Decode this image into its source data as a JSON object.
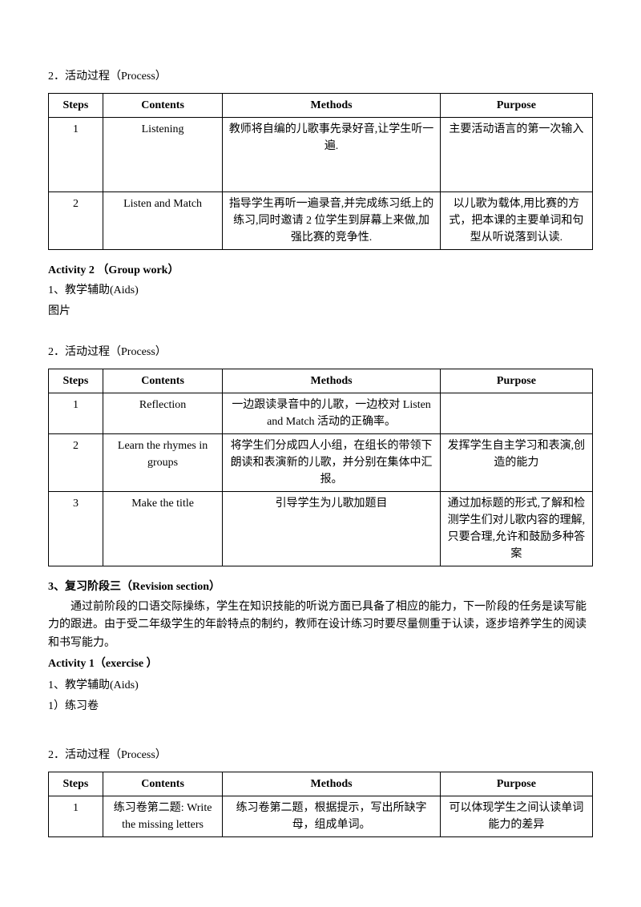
{
  "section1": {
    "heading": "2．活动过程（Process）",
    "table": {
      "headers": [
        "Steps",
        "Contents",
        "Methods",
        "Purpose"
      ],
      "rows": [
        {
          "step": "1",
          "contents": "Listening",
          "methods": "教师将自编的儿歌事先录好音,让学生听一遍.",
          "purpose": "主要活动语言的第一次输入",
          "pad": true
        },
        {
          "step": "2",
          "contents": "Listen and Match",
          "methods": "指导学生再听一遍录音,并完成练习纸上的练习,同时邀请 2 位学生到屏幕上来做,加强比赛的竞争性.",
          "purpose": "以儿歌为载体,用比赛的方式，把本课的主要单词和句型从听说落到认读."
        }
      ]
    }
  },
  "act2": {
    "title": "Activity 2 （Group work）",
    "aids_line": "1、教学辅助(Aids)",
    "aids_item": "图片",
    "process_head": "2．活动过程（Process）",
    "table": {
      "headers": [
        "Steps",
        "Contents",
        "Methods",
        "Purpose"
      ],
      "rows": [
        {
          "step": "1",
          "contents": "Reflection",
          "methods": "一边跟读录音中的儿歌，一边校对 Listen and Match 活动的正确率。",
          "purpose": ""
        },
        {
          "step": "2",
          "contents": "Learn the rhymes in groups",
          "methods": "将学生们分成四人小组，在组长的带领下朗读和表演新的儿歌，并分别在集体中汇报。",
          "purpose": "发挥学生自主学习和表演,创造的能力"
        },
        {
          "step": "3",
          "contents": "Make the title",
          "methods": "引导学生为儿歌加题目",
          "purpose": "通过加标题的形式,了解和检测学生们对儿歌内容的理解,只要合理,允许和鼓励多种答案"
        }
      ]
    }
  },
  "rev": {
    "title": "3、复习阶段三（Revision section）",
    "body": "通过前阶段的口语交际操练，学生在知识技能的听说方面已具备了相应的能力，下一阶段的任务是读写能力的跟进。由于受二年级学生的年龄特点的制约，教师在设计练习时要尽量侧重于认读，逐步培养学生的阅读和书写能力。",
    "act1_title": "Activity 1（exercise ）",
    "aids_line": "1、教学辅助(Aids)",
    "aids_item": "1）练习卷",
    "process_head": "2．活动过程（Process）",
    "table": {
      "headers": [
        "Steps",
        "Contents",
        "Methods",
        "Purpose"
      ],
      "rows": [
        {
          "step": "1",
          "contents": "练习卷第二题: Write the missing letters",
          "methods": "练习卷第二题，根据提示，写出所缺字母，组成单词。",
          "purpose": "可以体现学生之间认读单词能力的差异"
        }
      ]
    }
  }
}
